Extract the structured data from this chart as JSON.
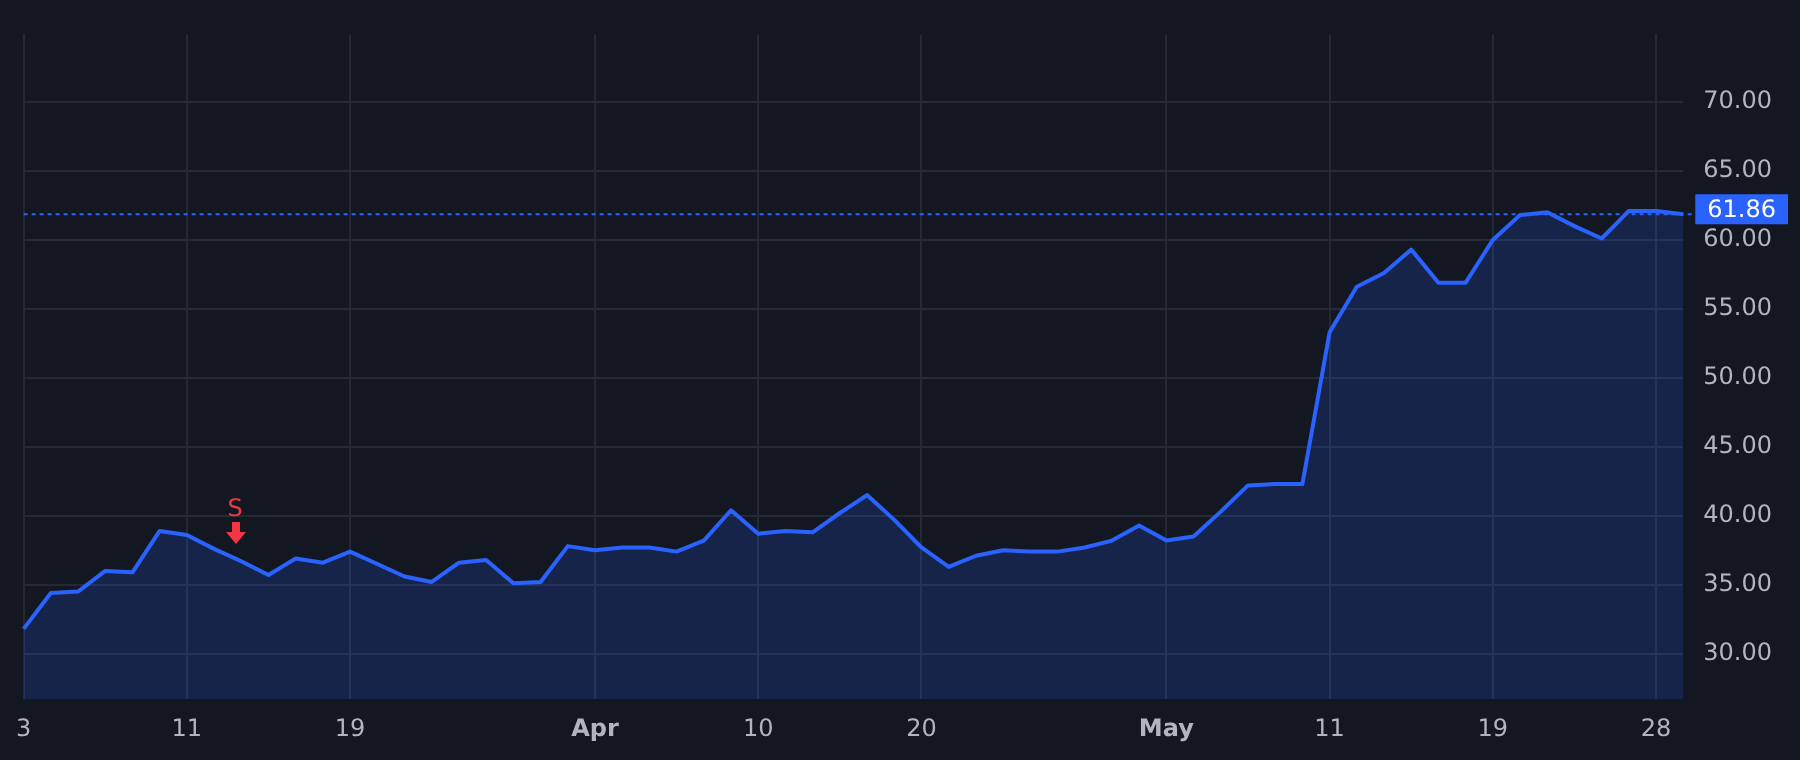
{
  "chart_data": {
    "type": "area",
    "categories": [
      "3",
      null,
      null,
      null,
      null,
      null,
      "11",
      null,
      null,
      null,
      null,
      null,
      "19",
      null,
      null,
      null,
      null,
      null,
      null,
      null,
      null,
      "Apr",
      null,
      null,
      null,
      null,
      null,
      "10",
      null,
      null,
      null,
      null,
      null,
      "20",
      null,
      null,
      null,
      null,
      null,
      null,
      null,
      null,
      "May",
      null,
      null,
      null,
      null,
      null,
      "11",
      null,
      null,
      null,
      null,
      null,
      "19",
      null,
      null,
      null,
      null,
      null,
      "28",
      null
    ],
    "series": [
      {
        "color": "#2962ff",
        "values": [
          31.8,
          34.4,
          34.5,
          36.0,
          35.9,
          38.9,
          38.6,
          37.6,
          36.7,
          35.7,
          36.9,
          36.6,
          37.4,
          36.5,
          35.6,
          35.2,
          36.6,
          36.8,
          35.1,
          35.2,
          37.8,
          37.5,
          37.7,
          37.7,
          37.4,
          38.2,
          40.4,
          38.7,
          38.9,
          38.8,
          40.2,
          41.5,
          39.7,
          37.7,
          36.3,
          37.1,
          37.5,
          37.4,
          37.4,
          37.7,
          38.2,
          39.3,
          38.2,
          38.5,
          40.3,
          42.2,
          42.3,
          42.3,
          53.3,
          56.6,
          57.6,
          59.3,
          56.9,
          56.9,
          60.0,
          61.8,
          62.0,
          61.0,
          60.1,
          62.1,
          62.1,
          61.86
        ]
      }
    ],
    "ylim": [
      26.7,
      74.9
    ],
    "yticks": [
      {
        "value": 30,
        "label": "30.00"
      },
      {
        "value": 35,
        "label": "35.00"
      },
      {
        "value": 40,
        "label": "40.00"
      },
      {
        "value": 45,
        "label": "45.00"
      },
      {
        "value": 50,
        "label": "50.00"
      },
      {
        "value": 55,
        "label": "55.00"
      },
      {
        "value": 60,
        "label": "60.00"
      },
      {
        "value": 65,
        "label": "65.00"
      },
      {
        "value": 70,
        "label": "70.00"
      }
    ],
    "ref_lines": [
      {
        "axis": "y",
        "value": 61.86,
        "label": "61.86",
        "color": "#2962ff",
        "line_style": "dotted"
      }
    ],
    "annotations": [
      "S"
    ],
    "grid": true,
    "legend": false,
    "marker": "none"
  }
}
